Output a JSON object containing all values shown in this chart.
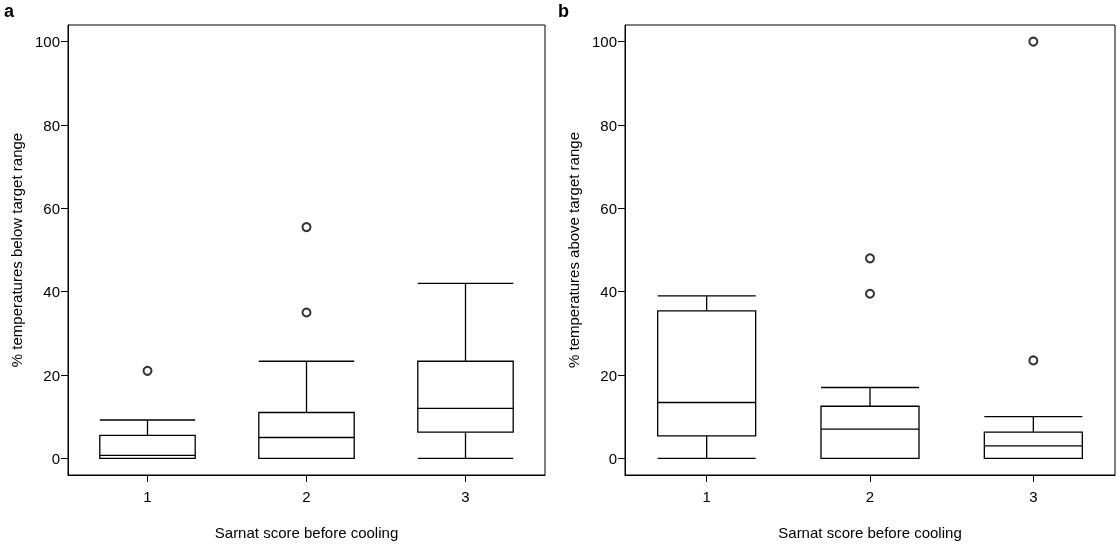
{
  "chart_data": [
    {
      "type": "box",
      "annotations": [
        "a"
      ],
      "xlabel": "Sarnat score before cooling",
      "ylabel": "% temperatures below target range",
      "categories": [
        "1",
        "2",
        "3"
      ],
      "ylim": [
        -4,
        104
      ],
      "yticks": [
        0,
        20,
        40,
        60,
        80,
        100
      ],
      "boxes": [
        {
          "low": 0,
          "q1": 0,
          "median": 0.7,
          "q3": 5.5,
          "high": 9.2,
          "outliers": [
            21
          ]
        },
        {
          "low": 0,
          "q1": 0,
          "median": 5,
          "q3": 11,
          "high": 23.3,
          "outliers": [
            35,
            55.5
          ]
        },
        {
          "low": 0,
          "q1": 6.3,
          "median": 12,
          "q3": 23.3,
          "high": 42
        }
      ]
    },
    {
      "type": "box",
      "annotations": [
        "b"
      ],
      "xlabel": "Sarnat score before cooling",
      "ylabel": "% temperatures above target range",
      "categories": [
        "1",
        "2",
        "3"
      ],
      "ylim": [
        -4,
        104
      ],
      "yticks": [
        0,
        20,
        40,
        60,
        80,
        100
      ],
      "boxes": [
        {
          "low": 0,
          "q1": 5.4,
          "median": 13.4,
          "q3": 35.4,
          "high": 39
        },
        {
          "low": 0,
          "q1": 0,
          "median": 7,
          "q3": 12.5,
          "high": 17,
          "outliers": [
            39.5,
            48
          ]
        },
        {
          "low": 0,
          "q1": 0,
          "median": 3,
          "q3": 6.3,
          "high": 10,
          "outliers": [
            23.5,
            100
          ]
        }
      ]
    }
  ]
}
